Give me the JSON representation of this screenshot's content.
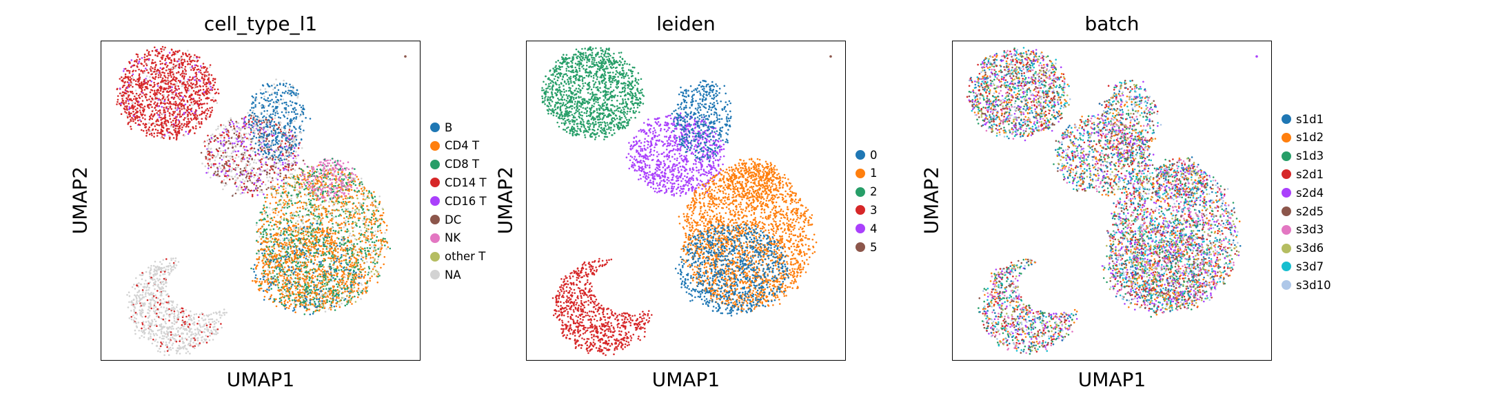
{
  "chart_data": [
    {
      "type": "scatter",
      "title": "cell_type_l1",
      "xlabel": "UMAP1",
      "ylabel": "UMAP2",
      "legend_position": "right",
      "legend": [
        {
          "label": "B",
          "color": "#1f77b4"
        },
        {
          "label": "CD4 T",
          "color": "#ff7f0e"
        },
        {
          "label": "CD8 T",
          "color": "#279e68"
        },
        {
          "label": "CD14 T",
          "color": "#d62728"
        },
        {
          "label": "CD16 T",
          "color": "#aa40fc"
        },
        {
          "label": "DC",
          "color": "#8c564b"
        },
        {
          "label": "NK",
          "color": "#e377c2"
        },
        {
          "label": "other T",
          "color": "#b5bd61"
        },
        {
          "label": "NA",
          "color": "#d3d3d3"
        }
      ]
    },
    {
      "type": "scatter",
      "title": "leiden",
      "xlabel": "UMAP1",
      "ylabel": "UMAP2",
      "legend_position": "right",
      "legend": [
        {
          "label": "0",
          "color": "#1f77b4"
        },
        {
          "label": "1",
          "color": "#ff7f0e"
        },
        {
          "label": "2",
          "color": "#279e68"
        },
        {
          "label": "3",
          "color": "#d62728"
        },
        {
          "label": "4",
          "color": "#aa40fc"
        },
        {
          "label": "5",
          "color": "#8c564b"
        }
      ]
    },
    {
      "type": "scatter",
      "title": "batch",
      "xlabel": "UMAP1",
      "ylabel": "UMAP2",
      "legend_position": "right",
      "legend": [
        {
          "label": "s1d1",
          "color": "#1f77b4"
        },
        {
          "label": "s1d2",
          "color": "#ff7f0e"
        },
        {
          "label": "s1d3",
          "color": "#279e68"
        },
        {
          "label": "s2d1",
          "color": "#d62728"
        },
        {
          "label": "s2d4",
          "color": "#aa40fc"
        },
        {
          "label": "s2d5",
          "color": "#8c564b"
        },
        {
          "label": "s3d3",
          "color": "#e377c2"
        },
        {
          "label": "s3d6",
          "color": "#b5bd61"
        },
        {
          "label": "s3d7",
          "color": "#17becf"
        },
        {
          "label": "s3d10",
          "color": "#aec7e8"
        }
      ]
    }
  ]
}
